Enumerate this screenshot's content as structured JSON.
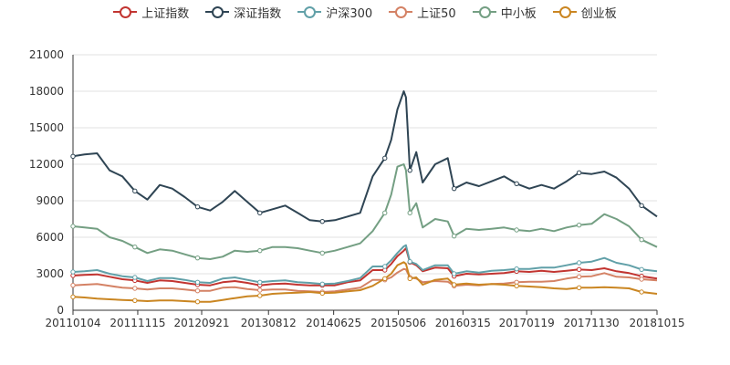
{
  "chart_data": {
    "type": "line",
    "title": "",
    "xlabel": "",
    "ylabel": "",
    "ylim": [
      0,
      21000
    ],
    "y_ticks": [
      "0",
      "3000",
      "6000",
      "9000",
      "12000",
      "15000",
      "18000",
      "21000"
    ],
    "x_range": [
      "20110104",
      "20181015"
    ],
    "x_tick_labels": [
      "20110104",
      "20111115",
      "20120921",
      "20130812",
      "20140625",
      "20150506",
      "20160315",
      "20170119",
      "20171130",
      "20181015"
    ],
    "grid": "horizontal",
    "legend_position": "top-center",
    "x": [
      "20110104",
      "20110301",
      "20110501",
      "20110701",
      "20110901",
      "20111101",
      "20120101",
      "20120301",
      "20120501",
      "20120701",
      "20120901",
      "20121101",
      "20130101",
      "20130301",
      "20130501",
      "20130701",
      "20130901",
      "20131101",
      "20140101",
      "20140301",
      "20140501",
      "20140701",
      "20140901",
      "20141101",
      "20150101",
      "20150301",
      "20150401",
      "20150501",
      "20150601",
      "20150612",
      "20150701",
      "20150801",
      "20150901",
      "20151101",
      "20160101",
      "20160201",
      "20160401",
      "20160601",
      "20160801",
      "20161001",
      "20161201",
      "20170201",
      "20170401",
      "20170601",
      "20170801",
      "20171001",
      "20171201",
      "20180201",
      "20180401",
      "20180601",
      "20180801",
      "20181015"
    ],
    "series": [
      {
        "name": "上证指数",
        "color": "#c23531",
        "values": [
          2850,
          2900,
          2950,
          2750,
          2550,
          2450,
          2250,
          2450,
          2400,
          2250,
          2100,
          2050,
          2300,
          2400,
          2250,
          2050,
          2150,
          2200,
          2100,
          2050,
          2050,
          2050,
          2300,
          2450,
          3300,
          3300,
          3800,
          4450,
          4900,
          5100,
          3950,
          3700,
          3200,
          3500,
          3450,
          2800,
          3000,
          2950,
          3000,
          3050,
          3200,
          3150,
          3250,
          3150,
          3250,
          3350,
          3300,
          3450,
          3200,
          3050,
          2800,
          2600
        ]
      },
      {
        "name": "深证指数",
        "color": "#2f4554",
        "values": [
          12650,
          12800,
          12900,
          11500,
          11000,
          9800,
          9100,
          10300,
          10000,
          9300,
          8500,
          8200,
          8900,
          9800,
          8900,
          8000,
          8300,
          8600,
          8000,
          7400,
          7300,
          7400,
          7700,
          8000,
          11000,
          12500,
          14000,
          16500,
          18000,
          17500,
          11500,
          13000,
          10500,
          12000,
          12500,
          10000,
          10500,
          10200,
          10600,
          11000,
          10400,
          10000,
          10300,
          10000,
          10600,
          11300,
          11200,
          11400,
          10900,
          10000,
          8600,
          7700
        ]
      },
      {
        "name": "沪深300",
        "color": "#61a0a8",
        "values": [
          3150,
          3200,
          3300,
          3000,
          2800,
          2700,
          2400,
          2650,
          2650,
          2500,
          2300,
          2250,
          2600,
          2700,
          2500,
          2300,
          2400,
          2450,
          2300,
          2250,
          2150,
          2200,
          2400,
          2650,
          3600,
          3600,
          4100,
          4700,
          5250,
          5350,
          4000,
          3800,
          3300,
          3700,
          3700,
          3000,
          3200,
          3100,
          3250,
          3300,
          3400,
          3400,
          3500,
          3500,
          3700,
          3900,
          4000,
          4300,
          3900,
          3700,
          3350,
          3200
        ]
      },
      {
        "name": "上证50",
        "color": "#d48265",
        "values": [
          2050,
          2100,
          2150,
          2000,
          1850,
          1800,
          1700,
          1800,
          1800,
          1700,
          1600,
          1600,
          1850,
          1900,
          1750,
          1650,
          1700,
          1700,
          1600,
          1550,
          1500,
          1550,
          1700,
          1850,
          2500,
          2500,
          2700,
          3100,
          3400,
          3350,
          2700,
          2600,
          2300,
          2400,
          2350,
          2000,
          2100,
          2050,
          2150,
          2200,
          2300,
          2350,
          2350,
          2400,
          2600,
          2750,
          2800,
          3050,
          2750,
          2700,
          2550,
          2450
        ]
      },
      {
        "name": "中小板",
        "color": "#749f83",
        "values": [
          6900,
          6800,
          6700,
          6000,
          5700,
          5200,
          4700,
          5000,
          4900,
          4600,
          4300,
          4200,
          4400,
          4900,
          4800,
          4900,
          5200,
          5200,
          5100,
          4900,
          4700,
          4900,
          5200,
          5500,
          6500,
          8000,
          9500,
          11800,
          12000,
          11500,
          8000,
          8800,
          6800,
          7500,
          7300,
          6100,
          6700,
          6600,
          6700,
          6800,
          6600,
          6500,
          6700,
          6500,
          6800,
          7000,
          7100,
          7900,
          7500,
          6900,
          5800,
          5200
        ]
      },
      {
        "name": "创业板",
        "color": "#ca8622",
        "values": [
          1100,
          1050,
          950,
          900,
          850,
          800,
          750,
          800,
          800,
          750,
          700,
          700,
          850,
          1000,
          1150,
          1200,
          1350,
          1400,
          1450,
          1500,
          1400,
          1450,
          1550,
          1650,
          2000,
          2600,
          3000,
          3700,
          3950,
          3800,
          2600,
          2700,
          2100,
          2500,
          2600,
          2100,
          2200,
          2100,
          2150,
          2100,
          2000,
          1950,
          1900,
          1800,
          1750,
          1850,
          1850,
          1900,
          1850,
          1800,
          1500,
          1350
        ]
      }
    ]
  }
}
